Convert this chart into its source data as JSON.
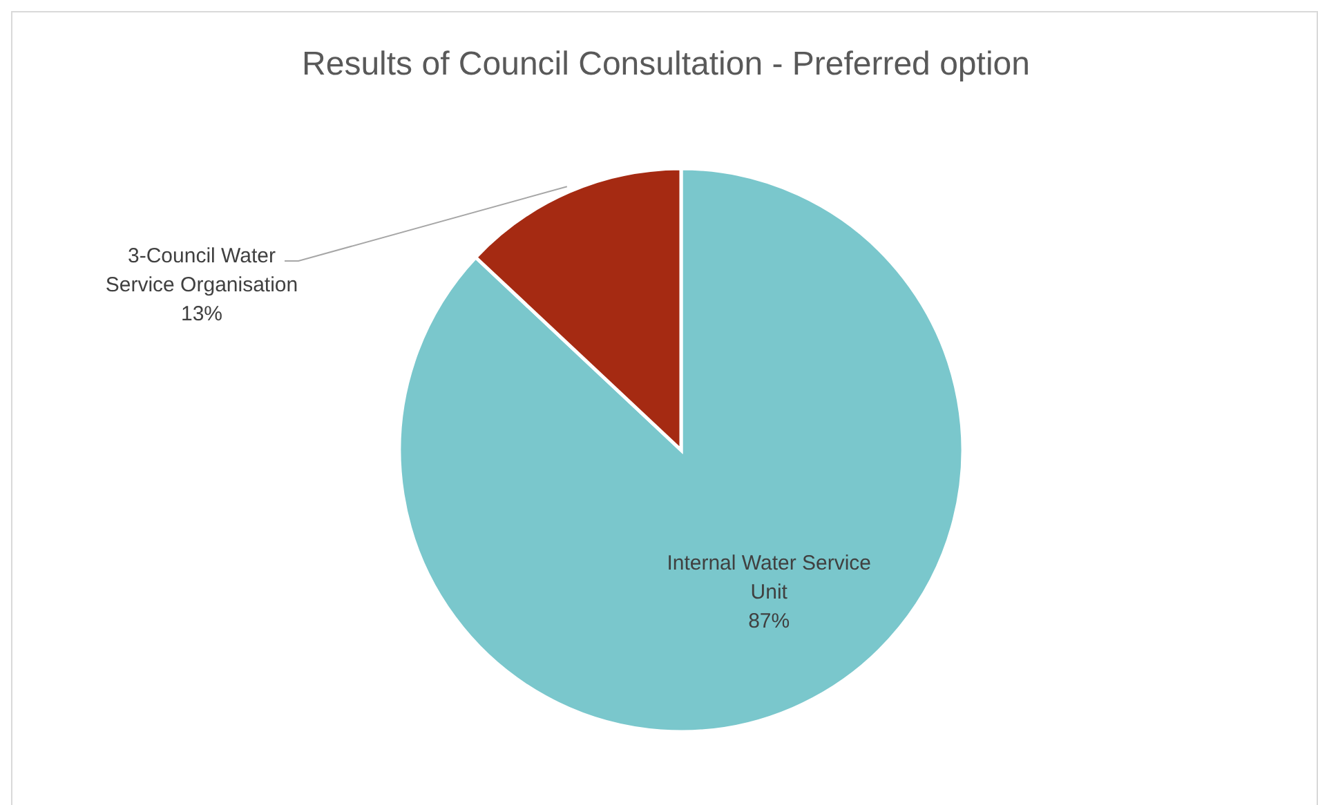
{
  "chart_data": {
    "type": "pie",
    "title": "Results of Council Consultation - Preferred option",
    "categories": [
      "Internal Water Service Unit",
      "3-Council Water Service Organisation"
    ],
    "values": [
      87,
      13
    ],
    "colors": [
      "#7ac7cc",
      "#a52a12"
    ],
    "value_labels": [
      "87%",
      "13%"
    ]
  }
}
